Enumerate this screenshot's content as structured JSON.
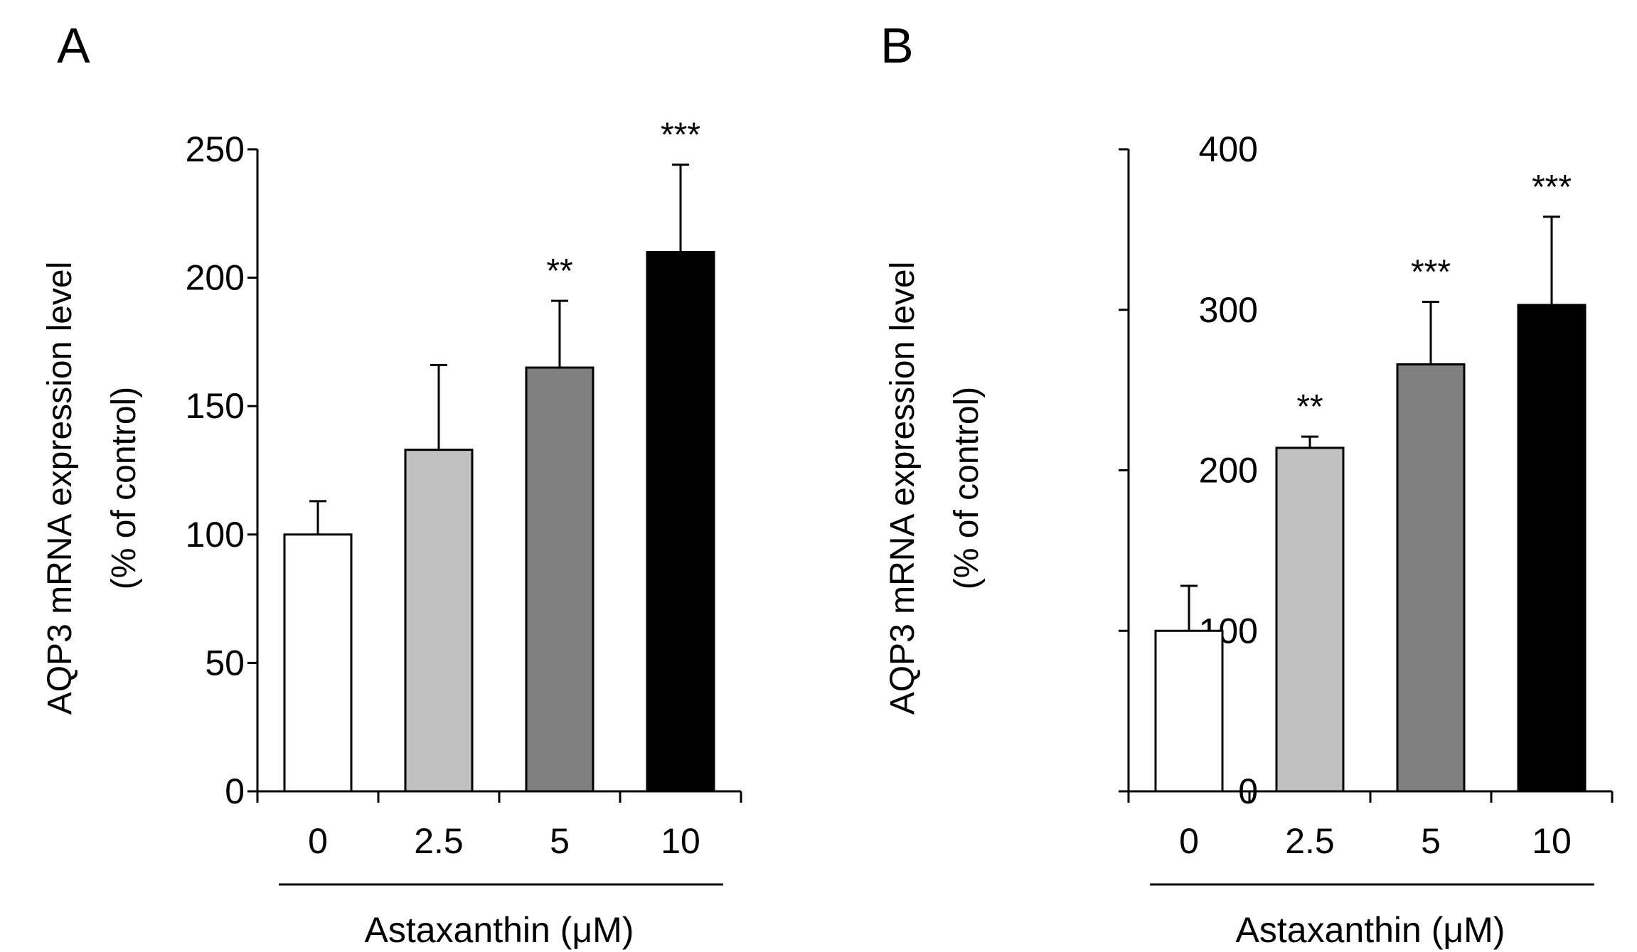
{
  "chart_data": [
    {
      "panel": "A",
      "type": "bar",
      "categories": [
        "0",
        "2.5",
        "5",
        "10"
      ],
      "values": [
        100,
        133,
        165,
        210
      ],
      "errors": [
        13,
        33,
        26,
        34
      ],
      "significance": [
        "",
        "",
        "**",
        "***"
      ],
      "bar_colors": [
        "#ffffff",
        "#c0c0c0",
        "#808080",
        "#000000"
      ],
      "ylabel_line1": "AQP3 mRNA expression level",
      "ylabel_line2": "(% of control)",
      "xlabel": "Astaxanthin (μM)",
      "ylim": [
        0,
        250
      ],
      "yticks": [
        0,
        50,
        100,
        150,
        200,
        250
      ],
      "ytick_labels": [
        "0",
        "50",
        "100",
        "150",
        "200",
        "250"
      ]
    },
    {
      "panel": "B",
      "type": "bar",
      "categories": [
        "0",
        "2.5",
        "5",
        "10"
      ],
      "values": [
        100,
        214,
        266,
        303
      ],
      "errors": [
        28,
        7,
        39,
        55
      ],
      "significance": [
        "",
        "**",
        "***",
        "***"
      ],
      "bar_colors": [
        "#ffffff",
        "#c0c0c0",
        "#808080",
        "#000000"
      ],
      "ylabel_line1": "AQP3 mRNA expression level",
      "ylabel_line2": "(% of control)",
      "xlabel": "Astaxanthin (μM)",
      "ylim": [
        0,
        400
      ],
      "yticks": [
        0,
        100,
        200,
        300,
        400
      ],
      "ytick_labels": [
        "0",
        "100",
        "200",
        "300",
        "400"
      ]
    }
  ]
}
